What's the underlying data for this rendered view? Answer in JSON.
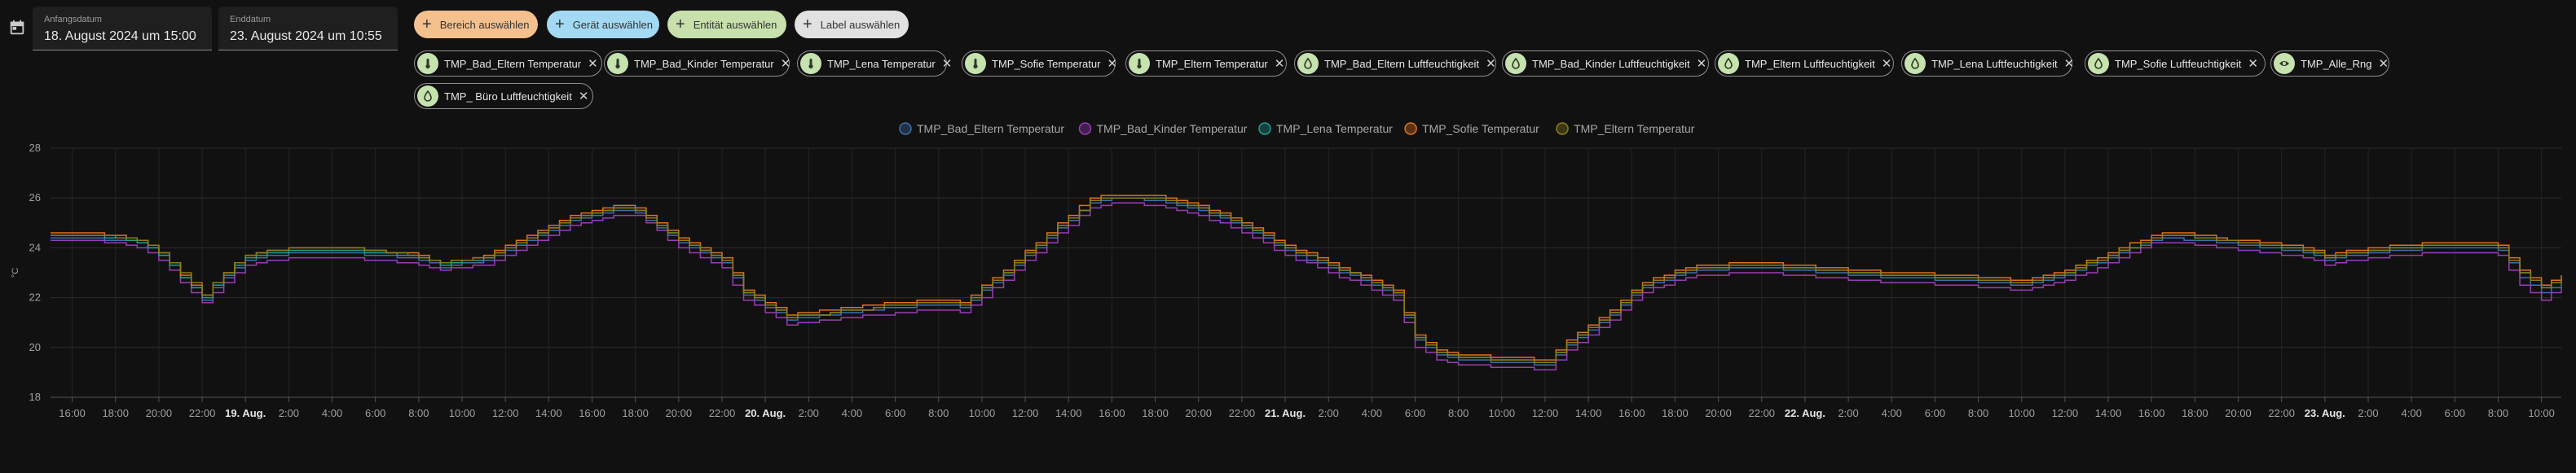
{
  "date_range": {
    "start_label": "Anfangsdatum",
    "start_value": "18. August 2024 um 15:00",
    "end_label": "Enddatum",
    "end_value": "23. August 2024 um 10:55"
  },
  "target_picker": {
    "area": {
      "label": "Bereich auswählen",
      "color": "#f4c08e"
    },
    "device": {
      "label": "Gerät auswählen",
      "color": "#a3d9f2"
    },
    "entity": {
      "label": "Entität auswählen",
      "color": "#c7e0ac"
    },
    "label": {
      "label": "Label auswählen",
      "color": "#e1e1e1"
    }
  },
  "entity_chips": [
    {
      "name": "TMP_Bad_Eltern Temperatur",
      "icon": "thermometer-icon"
    },
    {
      "name": "TMP_Bad_Kinder Temperatur",
      "icon": "thermometer-icon"
    },
    {
      "name": "TMP_Lena Temperatur",
      "icon": "thermometer-icon"
    },
    {
      "name": "TMP_Sofie Temperatur",
      "icon": "thermometer-icon"
    },
    {
      "name": "TMP_Eltern Temperatur",
      "icon": "thermometer-icon"
    },
    {
      "name": "TMP_Bad_Eltern Luftfeuchtigkeit",
      "icon": "water-drop-icon"
    },
    {
      "name": "TMP_Bad_Kinder Luftfeuchtigkeit",
      "icon": "water-drop-icon"
    },
    {
      "name": "TMP_Eltern Luftfeuchtigkeit",
      "icon": "water-drop-icon"
    },
    {
      "name": "TMP_Lena Luftfeuchtigkeit",
      "icon": "water-drop-icon"
    },
    {
      "name": "TMP_Sofie Luftfeuchtigkeit",
      "icon": "water-drop-icon"
    },
    {
      "name": "TMP_Alle_Rng",
      "icon": "eye-icon"
    },
    {
      "name": "TMP_ Büro Luftfeuchtigkeit",
      "icon": "water-drop-icon"
    }
  ],
  "chart_data": {
    "type": "line",
    "ylabel": "°C",
    "ylim": [
      18,
      28
    ],
    "yticks": [
      18,
      20,
      22,
      24,
      26,
      28
    ],
    "x_start": "2024-08-18 15:00",
    "x_end": "2024-08-23 10:55",
    "x": [
      "2024-08-18 15:00",
      "2024-08-18 17:00",
      "2024-08-18 19:00",
      "2024-08-18 20:00",
      "2024-08-18 21:00",
      "2024-08-18 22:00",
      "2024-08-18 23:00",
      "2024-08-19 00:00",
      "2024-08-19 02:00",
      "2024-08-19 04:00",
      "2024-08-19 06:00",
      "2024-08-19 08:00",
      "2024-08-19 09:00",
      "2024-08-19 11:00",
      "2024-08-19 13:00",
      "2024-08-19 15:00",
      "2024-08-19 17:00",
      "2024-08-19 18:00",
      "2024-08-19 20:00",
      "2024-08-19 22:00",
      "2024-08-19 23:00",
      "2024-08-20 01:00",
      "2024-08-20 03:00",
      "2024-08-20 06:00",
      "2024-08-20 08:00",
      "2024-08-20 09:00",
      "2024-08-20 11:00",
      "2024-08-20 13:00",
      "2024-08-20 15:00",
      "2024-08-20 16:00",
      "2024-08-20 18:00",
      "2024-08-20 20:00",
      "2024-08-20 22:00",
      "2024-08-21 00:00",
      "2024-08-21 02:00",
      "2024-08-21 04:00",
      "2024-08-21 05:00",
      "2024-08-21 06:00",
      "2024-08-21 07:00",
      "2024-08-21 08:00",
      "2024-08-21 10:00",
      "2024-08-21 12:00",
      "2024-08-21 13:00",
      "2024-08-21 14:00",
      "2024-08-21 15:00",
      "2024-08-21 16:00",
      "2024-08-21 17:00",
      "2024-08-21 19:00",
      "2024-08-21 22:00",
      "2024-08-22 01:00",
      "2024-08-22 04:00",
      "2024-08-22 07:00",
      "2024-08-22 10:00",
      "2024-08-22 12:00",
      "2024-08-22 14:00",
      "2024-08-22 16:00",
      "2024-08-22 17:00",
      "2024-08-22 19:00",
      "2024-08-22 21:00",
      "2024-08-22 23:00",
      "2024-08-23 00:00",
      "2024-08-23 02:00",
      "2024-08-23 05:00",
      "2024-08-23 07:00",
      "2024-08-23 08:00",
      "2024-08-23 09:00",
      "2024-08-23 10:00",
      "2024-08-23 10:55"
    ],
    "series": [
      {
        "name": "TMP_Bad_Eltern Temperatur",
        "color": "#3e6fa8",
        "values": [
          24.4,
          24.4,
          24.2,
          23.7,
          22.8,
          21.9,
          22.8,
          23.5,
          23.8,
          23.8,
          23.7,
          23.5,
          23.2,
          23.5,
          24.3,
          25.1,
          25.5,
          25.4,
          24.2,
          23.4,
          22.1,
          21.1,
          21.3,
          21.6,
          21.7,
          21.6,
          22.9,
          24.4,
          25.8,
          26.0,
          25.9,
          25.5,
          24.8,
          23.9,
          23.2,
          22.5,
          22.1,
          20.3,
          19.7,
          19.5,
          19.4,
          19.3,
          20.1,
          20.7,
          21.3,
          22.1,
          22.6,
          23.1,
          23.2,
          23.0,
          22.8,
          22.7,
          22.5,
          22.9,
          23.6,
          24.3,
          24.4,
          24.2,
          24.0,
          23.8,
          23.5,
          23.8,
          24.0,
          24.0,
          23.9,
          22.8,
          22.2,
          22.6
        ]
      },
      {
        "name": "TMP_Bad_Kinder Temperatur",
        "color": "#9b3bb7",
        "values": [
          24.3,
          24.3,
          24.0,
          23.5,
          22.6,
          21.8,
          22.6,
          23.3,
          23.6,
          23.6,
          23.5,
          23.3,
          23.1,
          23.3,
          24.1,
          24.9,
          25.3,
          25.3,
          24.0,
          23.2,
          21.9,
          20.9,
          21.1,
          21.4,
          21.5,
          21.4,
          22.7,
          24.2,
          25.6,
          25.8,
          25.7,
          25.3,
          24.6,
          23.7,
          23.0,
          22.3,
          21.9,
          20.0,
          19.5,
          19.3,
          19.2,
          19.1,
          19.9,
          20.5,
          21.1,
          21.9,
          22.4,
          22.9,
          23.0,
          22.8,
          22.6,
          22.5,
          22.3,
          22.7,
          23.4,
          24.2,
          24.2,
          24.0,
          23.8,
          23.6,
          23.3,
          23.6,
          23.8,
          23.8,
          23.7,
          22.5,
          21.9,
          22.4
        ]
      },
      {
        "name": "TMP_Lena Temperatur",
        "color": "#1e9e92",
        "values": [
          24.5,
          24.5,
          24.2,
          23.7,
          22.8,
          22.0,
          22.9,
          23.6,
          23.9,
          23.9,
          23.8,
          23.6,
          23.3,
          23.6,
          24.4,
          25.2,
          25.6,
          25.5,
          24.3,
          23.5,
          22.2,
          21.2,
          21.4,
          21.7,
          21.8,
          21.7,
          23.0,
          24.5,
          25.9,
          26.0,
          26.0,
          25.6,
          24.9,
          24.0,
          23.3,
          22.6,
          22.2,
          20.4,
          19.8,
          19.6,
          19.5,
          19.4,
          20.2,
          20.8,
          21.4,
          22.2,
          22.7,
          23.2,
          23.3,
          23.1,
          22.9,
          22.8,
          22.6,
          23.0,
          23.7,
          24.4,
          24.5,
          24.3,
          24.1,
          23.9,
          23.6,
          23.9,
          24.1,
          24.1,
          24.0,
          23.0,
          22.4,
          22.8
        ]
      },
      {
        "name": "TMP_Sofie Temperatur",
        "color": "#e0711f",
        "values": [
          24.6,
          24.6,
          24.3,
          23.8,
          22.9,
          22.1,
          23.0,
          23.7,
          24.0,
          24.0,
          23.9,
          23.7,
          23.4,
          23.7,
          24.5,
          25.3,
          25.7,
          25.6,
          24.4,
          23.6,
          22.3,
          21.3,
          21.5,
          21.8,
          21.9,
          21.8,
          23.1,
          24.6,
          26.0,
          26.1,
          26.1,
          25.7,
          25.0,
          24.1,
          23.4,
          22.7,
          22.3,
          20.5,
          19.9,
          19.7,
          19.6,
          19.5,
          20.3,
          20.9,
          21.5,
          22.3,
          22.8,
          23.3,
          23.4,
          23.2,
          23.0,
          22.9,
          22.7,
          23.1,
          23.8,
          24.5,
          24.6,
          24.4,
          24.2,
          24.0,
          23.7,
          24.0,
          24.2,
          24.2,
          24.1,
          23.1,
          22.5,
          22.9
        ]
      },
      {
        "name": "TMP_Eltern Temperatur",
        "color": "#8c7d17",
        "values": [
          24.5,
          24.5,
          24.3,
          23.8,
          23.0,
          22.1,
          23.0,
          23.7,
          24.0,
          24.0,
          23.9,
          23.6,
          23.4,
          23.6,
          24.4,
          25.2,
          25.6,
          25.5,
          24.3,
          23.5,
          22.2,
          21.2,
          21.4,
          21.7,
          21.8,
          21.7,
          23.0,
          24.5,
          25.9,
          26.0,
          26.0,
          25.6,
          24.9,
          24.0,
          23.3,
          22.6,
          22.2,
          20.4,
          19.8,
          19.6,
          19.5,
          19.4,
          20.2,
          20.8,
          21.4,
          22.2,
          22.7,
          23.2,
          23.3,
          23.1,
          22.9,
          22.8,
          22.6,
          23.0,
          23.7,
          24.4,
          24.5,
          24.3,
          24.1,
          23.9,
          23.6,
          23.9,
          24.1,
          24.1,
          24.0,
          23.0,
          22.4,
          22.8
        ]
      }
    ],
    "xticks": [
      {
        "t": "2024-08-18 16:00",
        "label": "16:00"
      },
      {
        "t": "2024-08-18 18:00",
        "label": "18:00"
      },
      {
        "t": "2024-08-18 20:00",
        "label": "20:00"
      },
      {
        "t": "2024-08-18 22:00",
        "label": "22:00"
      },
      {
        "t": "2024-08-19 00:00",
        "label": "19. Aug.",
        "bold": true
      },
      {
        "t": "2024-08-19 02:00",
        "label": "2:00"
      },
      {
        "t": "2024-08-19 04:00",
        "label": "4:00"
      },
      {
        "t": "2024-08-19 06:00",
        "label": "6:00"
      },
      {
        "t": "2024-08-19 08:00",
        "label": "8:00"
      },
      {
        "t": "2024-08-19 10:00",
        "label": "10:00"
      },
      {
        "t": "2024-08-19 12:00",
        "label": "12:00"
      },
      {
        "t": "2024-08-19 14:00",
        "label": "14:00"
      },
      {
        "t": "2024-08-19 16:00",
        "label": "16:00"
      },
      {
        "t": "2024-08-19 18:00",
        "label": "18:00"
      },
      {
        "t": "2024-08-19 20:00",
        "label": "20:00"
      },
      {
        "t": "2024-08-19 22:00",
        "label": "22:00"
      },
      {
        "t": "2024-08-20 00:00",
        "label": "20. Aug.",
        "bold": true
      },
      {
        "t": "2024-08-20 02:00",
        "label": "2:00"
      },
      {
        "t": "2024-08-20 04:00",
        "label": "4:00"
      },
      {
        "t": "2024-08-20 06:00",
        "label": "6:00"
      },
      {
        "t": "2024-08-20 08:00",
        "label": "8:00"
      },
      {
        "t": "2024-08-20 10:00",
        "label": "10:00"
      },
      {
        "t": "2024-08-20 12:00",
        "label": "12:00"
      },
      {
        "t": "2024-08-20 14:00",
        "label": "14:00"
      },
      {
        "t": "2024-08-20 16:00",
        "label": "16:00"
      },
      {
        "t": "2024-08-20 18:00",
        "label": "18:00"
      },
      {
        "t": "2024-08-20 20:00",
        "label": "20:00"
      },
      {
        "t": "2024-08-20 22:00",
        "label": "22:00"
      },
      {
        "t": "2024-08-21 00:00",
        "label": "21. Aug.",
        "bold": true
      },
      {
        "t": "2024-08-21 02:00",
        "label": "2:00"
      },
      {
        "t": "2024-08-21 04:00",
        "label": "4:00"
      },
      {
        "t": "2024-08-21 06:00",
        "label": "6:00"
      },
      {
        "t": "2024-08-21 08:00",
        "label": "8:00"
      },
      {
        "t": "2024-08-21 10:00",
        "label": "10:00"
      },
      {
        "t": "2024-08-21 12:00",
        "label": "12:00"
      },
      {
        "t": "2024-08-21 14:00",
        "label": "14:00"
      },
      {
        "t": "2024-08-21 16:00",
        "label": "16:00"
      },
      {
        "t": "2024-08-21 18:00",
        "label": "18:00"
      },
      {
        "t": "2024-08-21 20:00",
        "label": "20:00"
      },
      {
        "t": "2024-08-21 22:00",
        "label": "22:00"
      },
      {
        "t": "2024-08-22 00:00",
        "label": "22. Aug.",
        "bold": true
      },
      {
        "t": "2024-08-22 02:00",
        "label": "2:00"
      },
      {
        "t": "2024-08-22 04:00",
        "label": "4:00"
      },
      {
        "t": "2024-08-22 06:00",
        "label": "6:00"
      },
      {
        "t": "2024-08-22 08:00",
        "label": "8:00"
      },
      {
        "t": "2024-08-22 10:00",
        "label": "10:00"
      },
      {
        "t": "2024-08-22 12:00",
        "label": "12:00"
      },
      {
        "t": "2024-08-22 14:00",
        "label": "14:00"
      },
      {
        "t": "2024-08-22 16:00",
        "label": "16:00"
      },
      {
        "t": "2024-08-22 18:00",
        "label": "18:00"
      },
      {
        "t": "2024-08-22 20:00",
        "label": "20:00"
      },
      {
        "t": "2024-08-22 22:00",
        "label": "22:00"
      },
      {
        "t": "2024-08-23 00:00",
        "label": "23. Aug.",
        "bold": true
      },
      {
        "t": "2024-08-23 02:00",
        "label": "2:00"
      },
      {
        "t": "2024-08-23 04:00",
        "label": "4:00"
      },
      {
        "t": "2024-08-23 06:00",
        "label": "6:00"
      },
      {
        "t": "2024-08-23 08:00",
        "label": "8:00"
      },
      {
        "t": "2024-08-23 10:00",
        "label": "10:00"
      }
    ],
    "grid": true,
    "legend_position": "top-center",
    "step_line": true
  }
}
